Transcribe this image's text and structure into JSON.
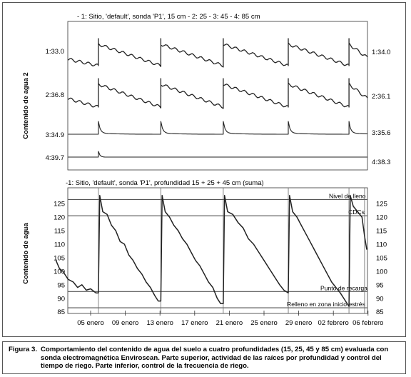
{
  "colors": {
    "line": "#222222",
    "frame": "#333333",
    "grid": "#444444",
    "background": "#ffffff"
  },
  "chart_data": [
    {
      "type": "line",
      "title": "- 1: Sitio, 'default', sonda 'P1', 15 cm - 2: 25 - 3: 45 - 4: 85 cm",
      "ylabel": "Contenido de agua 2",
      "xlabel": "",
      "grid": false,
      "x_ticks": [
        "05 enero",
        "09 enero",
        "13 enero",
        "17 enero",
        "21 enero",
        "25 enero",
        "29 enero",
        "02 febrero",
        "06 febrero"
      ],
      "series": [
        {
          "name": "1",
          "left_label": "1:33.0",
          "right_label": "1:34.0"
        },
        {
          "name": "2",
          "left_label": "2:36.8",
          "right_label": "2:36.1"
        },
        {
          "name": "3",
          "left_label": "3:34.9",
          "right_label": "3:35.6"
        },
        {
          "name": "4",
          "left_label": "4:39.7",
          "right_label": "4:38.3"
        }
      ],
      "irrigation_days": [
        4.9,
        12.1,
        19.3,
        26.8,
        33.8
      ]
    },
    {
      "type": "line",
      "title": "-1: Sitio, 'default', sonda 'P1', profundidad 15 + 25 + 45 cm (suma)",
      "ylabel": "Contenido de agua",
      "xlabel": "",
      "grid": false,
      "ylim": [
        84,
        129
      ],
      "y_ticks": [
        85,
        90,
        95,
        100,
        105,
        110,
        115,
        120,
        125
      ],
      "x_ticks": [
        "05 enero",
        "09 enero",
        "13 enero",
        "17 enero",
        "21 enero",
        "25 enero",
        "29 enero",
        "02 febrero",
        "06 febrero"
      ],
      "reference_lines": [
        {
          "label": "Nivel de lleno",
          "value": 126.5
        },
        {
          "label": "CDCs",
          "value": 120.5
        },
        {
          "label": "Punto de recarga",
          "value": 92.5
        },
        {
          "label": "Relleno en zona inicio estrés",
          "value": 86.5
        }
      ],
      "series": [
        {
          "name": "suma",
          "x": [
            0,
            0.4,
            0.8,
            1.4,
            2.0,
            2.5,
            3.0,
            3.5,
            4.0,
            4.6,
            4.9,
            5.05,
            5.4,
            5.9,
            6.4,
            6.9,
            7.4,
            7.9,
            8.4,
            8.9,
            9.4,
            9.9,
            10.4,
            10.9,
            11.4,
            11.8,
            12.1,
            12.25,
            12.6,
            13.1,
            13.6,
            14.1,
            14.6,
            15.1,
            15.6,
            16.1,
            16.6,
            17.1,
            17.6,
            18.1,
            18.6,
            19.0,
            19.3,
            19.45,
            19.8,
            20.4,
            21.0,
            21.6,
            22.2,
            22.8,
            23.4,
            24.0,
            24.6,
            25.2,
            25.8,
            26.3,
            26.8,
            26.95,
            27.3,
            27.8,
            28.3,
            28.8,
            29.3,
            29.8,
            30.3,
            30.8,
            31.3,
            31.8,
            32.3,
            32.8,
            33.4,
            33.8,
            33.95,
            34.3,
            34.8,
            35.3,
            35.6,
            35.85
          ],
          "values": [
            104,
            101,
            100,
            97,
            96,
            94,
            95,
            93,
            93.5,
            92,
            92,
            128,
            122,
            121,
            117,
            115,
            111,
            110,
            106,
            104,
            101,
            99,
            96,
            94,
            91,
            89,
            89,
            128,
            122,
            120,
            117,
            115,
            112,
            110,
            107,
            104,
            102,
            99,
            96,
            94,
            90,
            88,
            88,
            128,
            122,
            121,
            118,
            116,
            112,
            110,
            107,
            104,
            101,
            98,
            95,
            93,
            92,
            128,
            122,
            120,
            117,
            114,
            111,
            108,
            105,
            102,
            99,
            96,
            94,
            92,
            89,
            87,
            128,
            124,
            122,
            120,
            113,
            108
          ]
        }
      ]
    }
  ],
  "caption": {
    "label": "Figura 3.",
    "text": "Comportamiento del contenido de agua del suelo a cuatro profundidades (15, 25, 45 y 85 cm) evaluada con sonda electromagnética Enviroscan. Parte superior, actividad de las raíces por profundidad y control del tiempo de riego. Parte inferior, control de la frecuencia de riego."
  }
}
